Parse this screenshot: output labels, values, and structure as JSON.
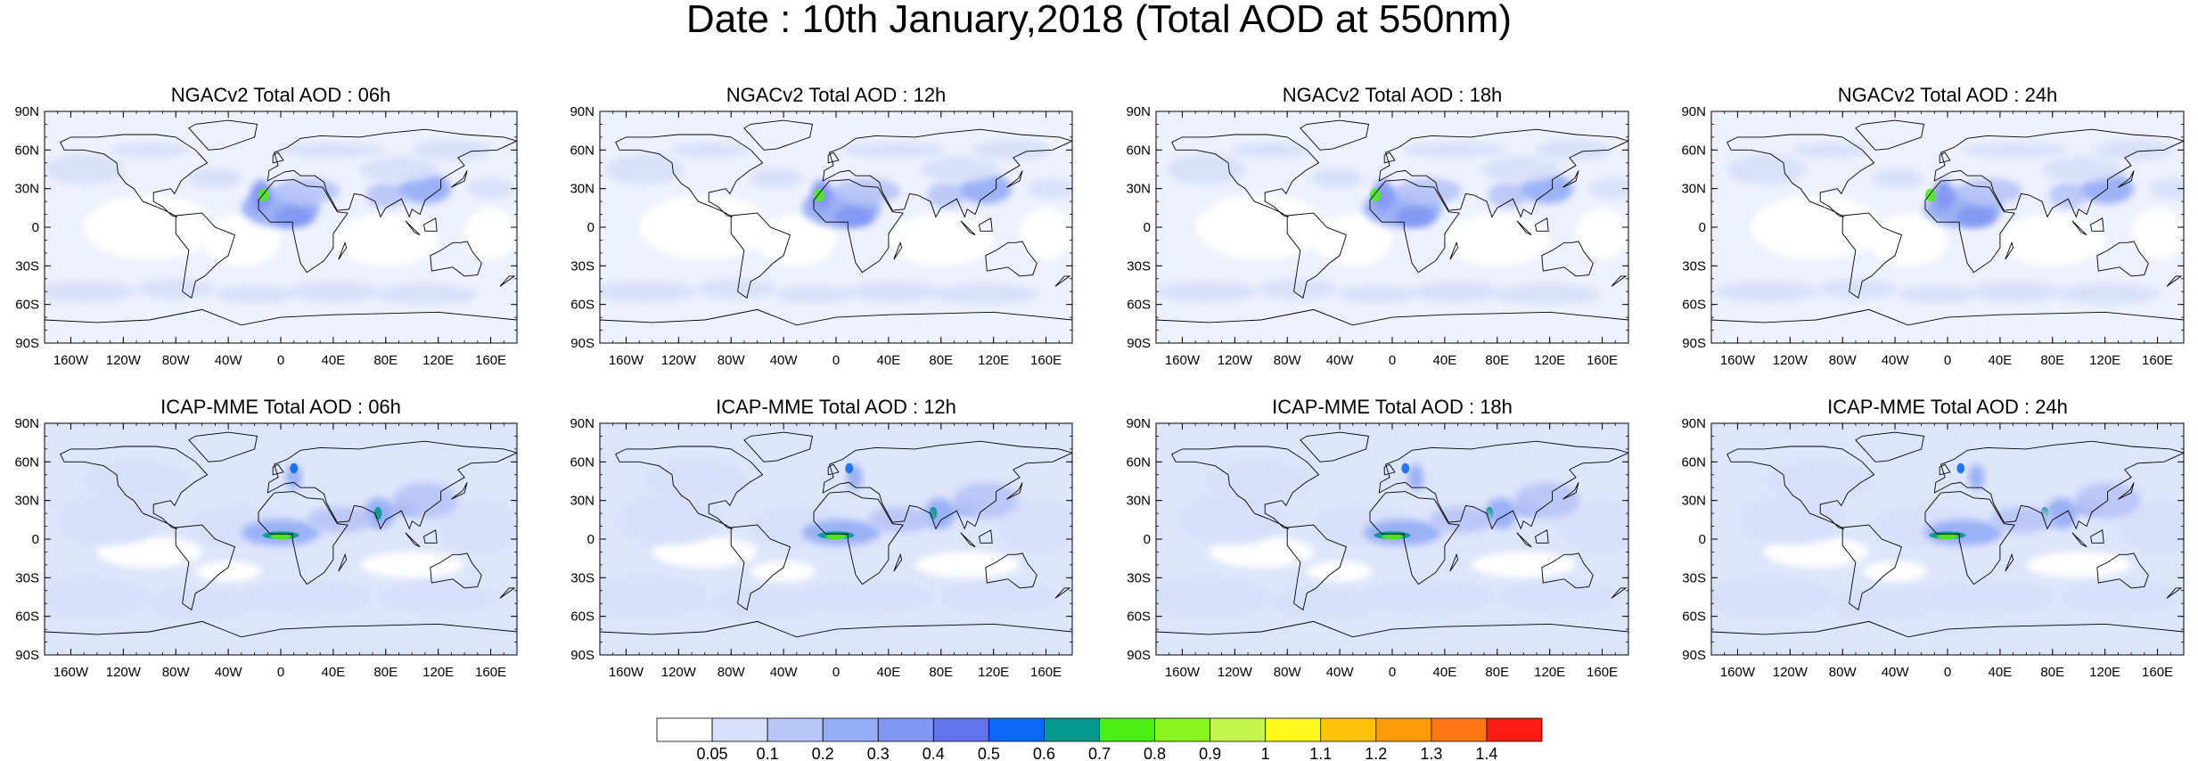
{
  "title": "Date : 10th January,2018 (Total AOD at 550nm)",
  "map": {
    "lat_labels": [
      "90N",
      "60N",
      "30N",
      "0",
      "30S",
      "60S",
      "90S"
    ],
    "lon_labels": [
      "160W",
      "120W",
      "80W",
      "40W",
      "0",
      "40E",
      "80E",
      "120E",
      "160E"
    ],
    "panels": [
      {
        "title": "NGACv2 Total AOD : 06h",
        "model": "NGACv2",
        "hour": "06h"
      },
      {
        "title": "NGACv2 Total AOD : 12h",
        "model": "NGACv2",
        "hour": "12h"
      },
      {
        "title": "NGACv2 Total AOD : 18h",
        "model": "NGACv2",
        "hour": "18h"
      },
      {
        "title": "NGACv2 Total AOD : 24h",
        "model": "NGACv2",
        "hour": "24h"
      },
      {
        "title": "ICAP-MME Total AOD : 06h",
        "model": "ICAP-MME",
        "hour": "06h"
      },
      {
        "title": "ICAP-MME Total AOD : 12h",
        "model": "ICAP-MME",
        "hour": "12h"
      },
      {
        "title": "ICAP-MME Total AOD : 18h",
        "model": "ICAP-MME",
        "hour": "18h"
      },
      {
        "title": "ICAP-MME Total AOD : 24h",
        "model": "ICAP-MME",
        "hour": "24h"
      }
    ]
  },
  "colorbar": {
    "labels": [
      "0.05",
      "0.1",
      "0.2",
      "0.3",
      "0.4",
      "0.5",
      "0.6",
      "0.7",
      "0.8",
      "0.9",
      "1",
      "1.1",
      "1.2",
      "1.3",
      "1.4"
    ],
    "colors": [
      "#ffffff",
      "#d7e0fa",
      "#b8c5f7",
      "#94acf5",
      "#8196f2",
      "#6273ec",
      "#0a69f5",
      "#04988f",
      "#4dee14",
      "#89f51d",
      "#c4f54d",
      "#fff81a",
      "#ffc20a",
      "#ff9e0a",
      "#ff7815",
      "#ff1d13"
    ]
  }
}
